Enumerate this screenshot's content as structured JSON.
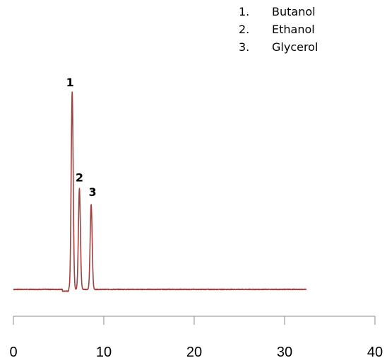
{
  "chart_data": {
    "type": "line",
    "xlim": [
      0,
      40
    ],
    "x_ticks": [
      0,
      10,
      20,
      30,
      40
    ],
    "x_tick_labels": [
      "0",
      "10",
      "20",
      "30",
      "40"
    ],
    "title": "",
    "xlabel": "",
    "ylabel": "",
    "grid": false,
    "line_color": "#a0403f",
    "peaks": [
      {
        "label": "1",
        "x": 6.5,
        "height": 100
      },
      {
        "label": "2",
        "x": 7.3,
        "height": 51
      },
      {
        "label": "3",
        "x": 8.6,
        "height": 43
      }
    ],
    "legend": {
      "placement": "top-right",
      "entries": [
        {
          "number": "1.",
          "name": "Butanol"
        },
        {
          "number": "2.",
          "name": "Ethanol"
        },
        {
          "number": "3.",
          "name": "Glycerol"
        }
      ]
    },
    "trace_end_x": 32.4
  }
}
